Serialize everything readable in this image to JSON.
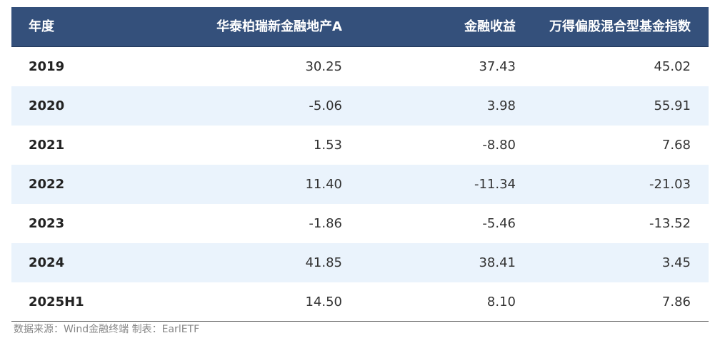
{
  "table": {
    "headers": [
      "年度",
      "华泰柏瑞新金融地产A",
      "金融收益",
      "万得偏股混合型基金指数"
    ],
    "rows": [
      [
        "2019",
        "30.25",
        "37.43",
        "45.02"
      ],
      [
        "2020",
        "-5.06",
        "3.98",
        "55.91"
      ],
      [
        "2021",
        "1.53",
        "-8.80",
        "7.68"
      ],
      [
        "2022",
        "11.40",
        "-11.34",
        "-21.03"
      ],
      [
        "2023",
        "-1.86",
        "-5.46",
        "-13.52"
      ],
      [
        "2024",
        "41.85",
        "38.41",
        "3.45"
      ],
      [
        "2025H1",
        "14.50",
        "8.10",
        "7.86"
      ]
    ]
  },
  "source": "数据来源：Wind金融终端 制表：EarlETF"
}
